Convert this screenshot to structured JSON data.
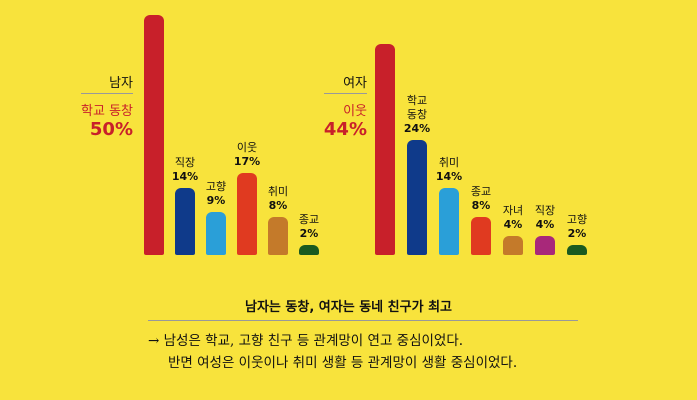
{
  "chart_data": [
    {
      "type": "bar",
      "group": "남자",
      "ylim": [
        0,
        50
      ],
      "top_label": "학교 동창",
      "top_value_text": "50%",
      "categories": [
        "학교 동창",
        "직장",
        "고향",
        "이웃",
        "취미",
        "종교"
      ],
      "values": [
        50,
        14,
        9,
        17,
        8,
        2
      ],
      "value_labels": [
        "50%",
        "14%",
        "9%",
        "17%",
        "8%",
        "2%"
      ],
      "colors": [
        "#c8202a",
        "#0f3a8a",
        "#2a9fd8",
        "#e03a20",
        "#c47a2a",
        "#1a5a20"
      ]
    },
    {
      "type": "bar",
      "group": "여자",
      "ylim": [
        0,
        50
      ],
      "top_label": "이웃",
      "top_value_text": "44%",
      "categories": [
        "이웃",
        "학교 동창",
        "취미",
        "종교",
        "자녀",
        "직장",
        "고향"
      ],
      "values": [
        44,
        24,
        14,
        8,
        4,
        4,
        2
      ],
      "value_labels": [
        "44%",
        "24%",
        "14%",
        "8%",
        "4%",
        "4%",
        "2%"
      ],
      "colors": [
        "#c8202a",
        "#0f3a8a",
        "#2a9fd8",
        "#e03a20",
        "#c47a2a",
        "#a8287a",
        "#1a5a20"
      ]
    }
  ],
  "headline": "남자는 동창, 여자는 동네 친구가 최고",
  "summary": {
    "line1": "→ 남성은 학교, 고향 친구 등 관계망이 연고 중심이었다.",
    "line2": "반면 여성은 이웃이나 취미 생활 등 관계망이 생활 중심이었다."
  }
}
